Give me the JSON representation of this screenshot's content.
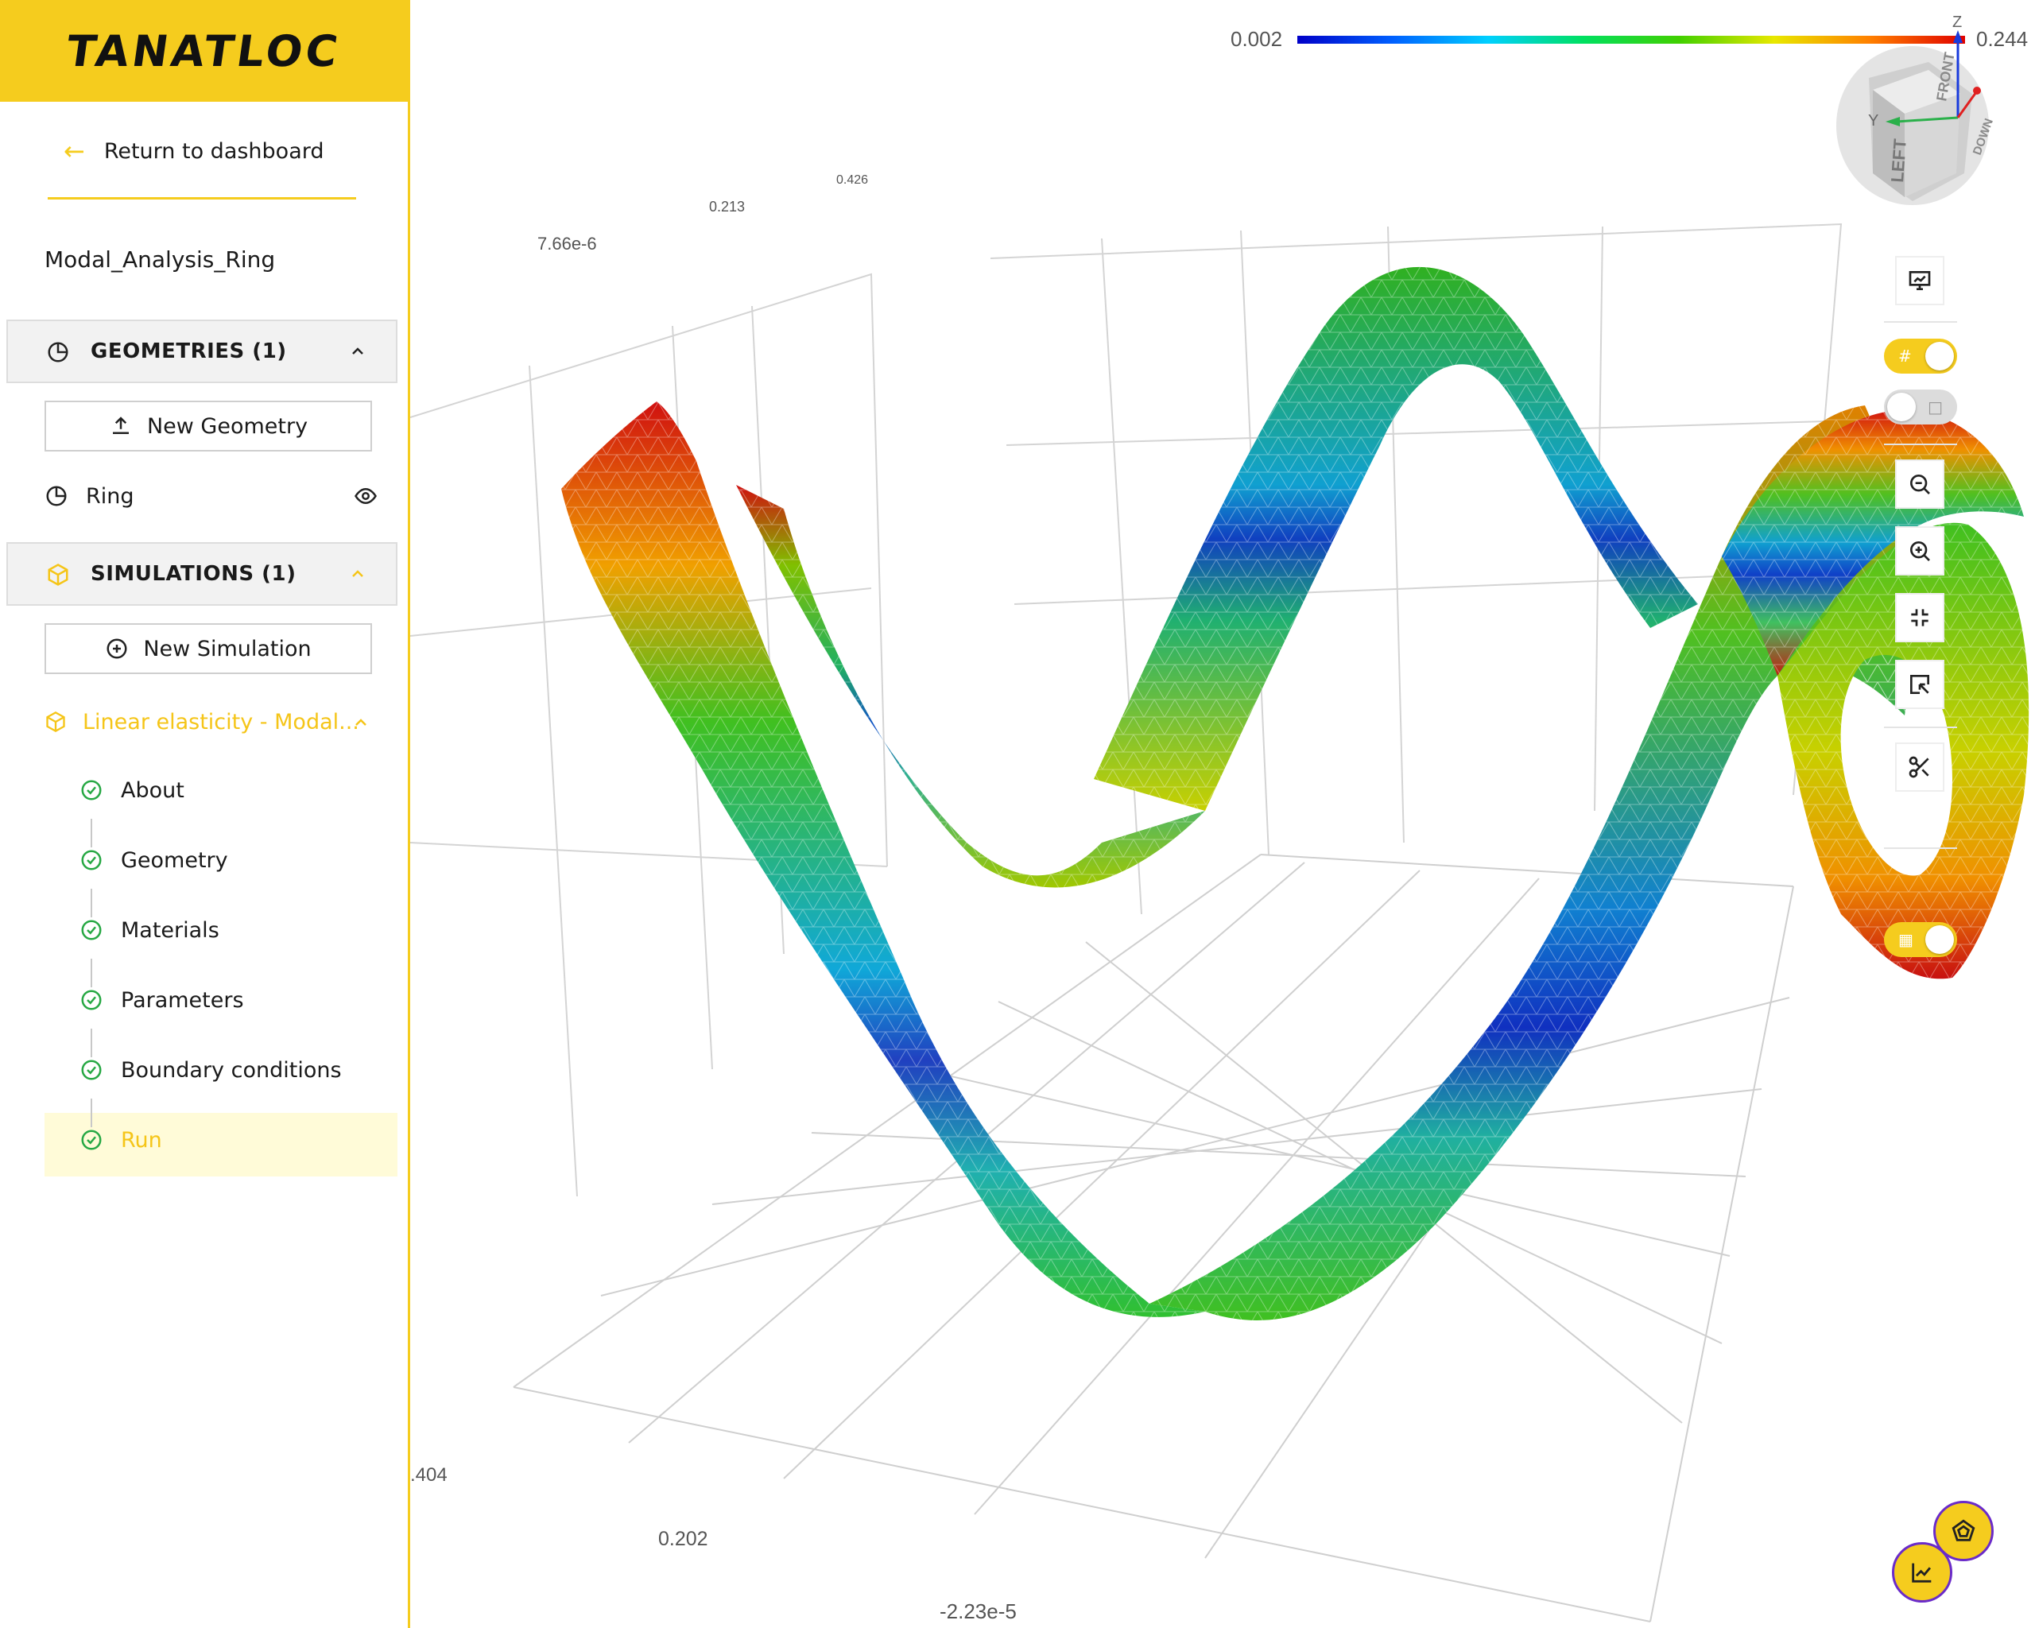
{
  "brand": {
    "logo": "TANATLOC",
    "accent_color": "#f5cc1e"
  },
  "sidebar": {
    "return_link": "Return to dashboard",
    "project_name": "Modal_Analysis_Ring",
    "geometries": {
      "header": "GEOMETRIES (1)",
      "new_button": "New Geometry",
      "items": [
        {
          "label": "Ring",
          "icon": "pie-chart-icon"
        }
      ]
    },
    "simulations": {
      "header": "SIMULATIONS (1)",
      "new_button": "New Simulation",
      "current": "Linear elasticity - Modal...",
      "steps": [
        {
          "label": "About",
          "status": "done"
        },
        {
          "label": "Geometry",
          "status": "done"
        },
        {
          "label": "Materials",
          "status": "done"
        },
        {
          "label": "Parameters",
          "status": "done"
        },
        {
          "label": "Boundary conditions",
          "status": "done"
        },
        {
          "label": "Run",
          "status": "active"
        }
      ]
    }
  },
  "viewer": {
    "colorbar": {
      "min": "0.002",
      "max": "0.244"
    },
    "axis_ticks": {
      "t1": "7.66e-6",
      "t2": "0.213",
      "t3": "0.426",
      "t4": ".404",
      "t5": "0.202",
      "t6": "-2.23e-5"
    },
    "navcube": {
      "z": "Z",
      "y": "Y",
      "front": "FRONT",
      "left": "LEFT",
      "down": "DOWN"
    },
    "toolbar": [
      "display-icon",
      "mesh-toggle",
      "edges-toggle",
      "zoom-out-icon",
      "zoom-in-icon",
      "fit-icon",
      "select-zoom-icon",
      "cut-icon",
      "grid-toggle"
    ],
    "fabs": [
      "chart-icon",
      "pentagon-icon"
    ]
  }
}
